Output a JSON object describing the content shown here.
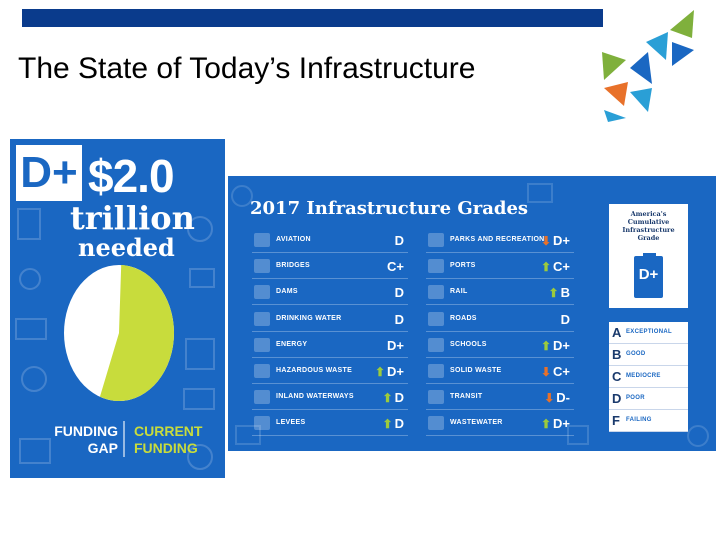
{
  "slide": {
    "title": "The State of Today’s Infrastructure",
    "accent_color": "#0a3b8c"
  },
  "funding": {
    "grade": "D+",
    "amount": "$2.0",
    "unit": "trillion",
    "label": "needed",
    "gap_label_1": "FUNDING",
    "gap_label_2": "GAP",
    "current_label_1": "CURRENT",
    "current_label_2": "FUNDING",
    "current_funding_fraction": 0.55,
    "colors": {
      "gap": "#ffffff",
      "current": "#c8dc3c",
      "panel": "#1a67c2"
    }
  },
  "grades": {
    "title": "2017 Infrastructure Grades",
    "left_column": [
      {
        "name": "AVIATION",
        "grade": "D",
        "trend": "",
        "icon": "airplane-icon"
      },
      {
        "name": "BRIDGES",
        "grade": "C+",
        "trend": "",
        "icon": "bridge-icon"
      },
      {
        "name": "DAMS",
        "grade": "D",
        "trend": "",
        "icon": "dam-icon"
      },
      {
        "name": "DRINKING WATER",
        "grade": "D",
        "trend": "",
        "icon": "water-drop-icon"
      },
      {
        "name": "ENERGY",
        "grade": "D+",
        "trend": "",
        "icon": "lightning-icon"
      },
      {
        "name": "HAZARDOUS WASTE",
        "grade": "D+",
        "trend": "up",
        "icon": "hazard-icon"
      },
      {
        "name": "INLAND WATERWAYS",
        "grade": "D",
        "trend": "up",
        "icon": "boat-icon"
      },
      {
        "name": "LEVEES",
        "grade": "D",
        "trend": "up",
        "icon": "levee-icon"
      }
    ],
    "right_column": [
      {
        "name": "PARKS AND RECREATION",
        "grade": "D+",
        "trend": "down",
        "icon": "tent-icon"
      },
      {
        "name": "PORTS",
        "grade": "C+",
        "trend": "up",
        "icon": "ship-icon"
      },
      {
        "name": "RAIL",
        "grade": "B",
        "trend": "up",
        "icon": "train-icon"
      },
      {
        "name": "ROADS",
        "grade": "D",
        "trend": "",
        "icon": "road-icon"
      },
      {
        "name": "SCHOOLS",
        "grade": "D+",
        "trend": "up",
        "icon": "school-icon"
      },
      {
        "name": "SOLID WASTE",
        "grade": "C+",
        "trend": "down",
        "icon": "trash-icon"
      },
      {
        "name": "TRANSIT",
        "grade": "D-",
        "trend": "down",
        "icon": "bus-icon"
      },
      {
        "name": "WASTEWATER",
        "grade": "D+",
        "trend": "up",
        "icon": "faucet-icon"
      }
    ],
    "cumulative_card": {
      "line1": "America's",
      "line2": "Cumulative",
      "line3": "Infrastructure",
      "line4": "Grade",
      "grade": "D+"
    },
    "legend": [
      {
        "letter": "A",
        "text": "EXCEPTIONAL"
      },
      {
        "letter": "B",
        "text": "GOOD"
      },
      {
        "letter": "C",
        "text": "MEDIOCRE"
      },
      {
        "letter": "D",
        "text": "POOR"
      },
      {
        "letter": "F",
        "text": "FAILING"
      }
    ],
    "colors": {
      "up": "#9ccb3c",
      "down": "#e8712a"
    }
  }
}
